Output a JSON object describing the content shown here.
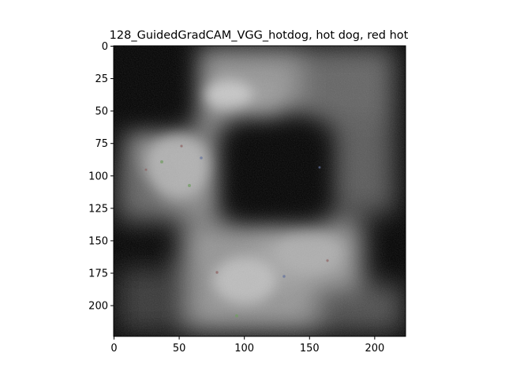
{
  "figure": {
    "title": "128_GuidedGradCAM_VGG_hotdog, hot dog, red hot"
  },
  "image_axes": {
    "x_ticks": [
      "0",
      "50",
      "100",
      "150",
      "200"
    ],
    "y_ticks": [
      "0",
      "25",
      "50",
      "75",
      "100",
      "125",
      "150",
      "175",
      "200"
    ],
    "x_tick_values": [
      0,
      50,
      100,
      150,
      200
    ],
    "y_tick_values": [
      0,
      25,
      50,
      75,
      100,
      125,
      150,
      175,
      200
    ],
    "x_range": [
      0,
      224
    ],
    "y_range": [
      0,
      224
    ]
  },
  "colors": {
    "background": "#000000",
    "highlight": "#bfbfbf",
    "accent_green": "#6a9a5a",
    "accent_red": "#8a5a5a"
  }
}
